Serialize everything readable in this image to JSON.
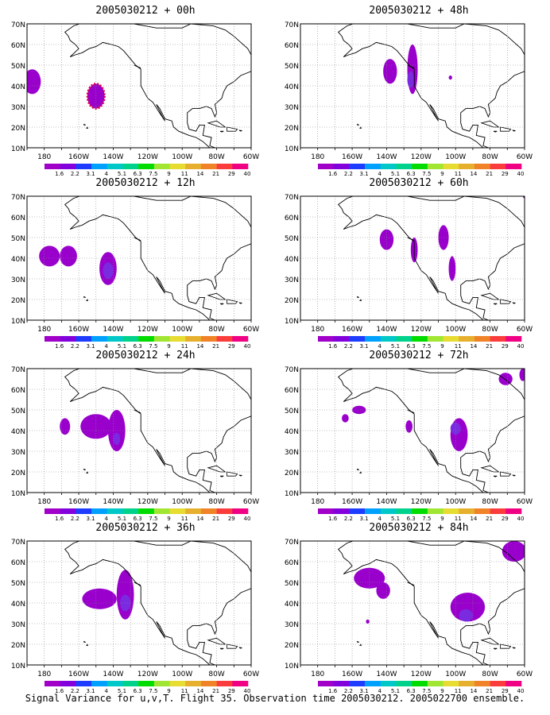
{
  "panels": [
    {
      "title": "2005030212 + 00h",
      "blobs": [
        {
          "lon": -187,
          "lat": 42,
          "rx": 5,
          "ry": 6,
          "level": 1
        },
        {
          "lon": -150,
          "lat": 35,
          "rx": 5,
          "ry": 6,
          "level": 1,
          "dotted": true
        }
      ]
    },
    {
      "title": "2005030212 + 12h",
      "blobs": [
        {
          "lon": -177,
          "lat": 41,
          "rx": 6,
          "ry": 5,
          "level": 1
        },
        {
          "lon": -166,
          "lat": 41,
          "rx": 5,
          "ry": 5,
          "level": 1
        },
        {
          "lon": -143,
          "lat": 35,
          "rx": 5,
          "ry": 8,
          "level": 1
        },
        {
          "lon": -143,
          "lat": 34,
          "rx": 3,
          "ry": 4,
          "level": 2
        }
      ]
    },
    {
      "title": "2005030212 + 24h",
      "blobs": [
        {
          "lon": -168,
          "lat": 42,
          "rx": 3,
          "ry": 4,
          "level": 1
        },
        {
          "lon": -150,
          "lat": 42,
          "rx": 9,
          "ry": 6,
          "level": 1
        },
        {
          "lon": -138,
          "lat": 40,
          "rx": 5,
          "ry": 10,
          "level": 1
        },
        {
          "lon": -138,
          "lat": 36,
          "rx": 2,
          "ry": 3,
          "level": 2
        }
      ]
    },
    {
      "title": "2005030212 + 36h",
      "blobs": [
        {
          "lon": -148,
          "lat": 42,
          "rx": 10,
          "ry": 5,
          "level": 1
        },
        {
          "lon": -133,
          "lat": 44,
          "rx": 5,
          "ry": 12,
          "level": 1
        },
        {
          "lon": -133,
          "lat": 40,
          "rx": 3,
          "ry": 4,
          "level": 2
        }
      ]
    },
    {
      "title": "2005030212 + 48h",
      "blobs": [
        {
          "lon": -138,
          "lat": 47,
          "rx": 4,
          "ry": 6,
          "level": 1
        },
        {
          "lon": -125,
          "lat": 48,
          "rx": 3,
          "ry": 12,
          "level": 1
        },
        {
          "lon": -126,
          "lat": 43,
          "rx": 2,
          "ry": 4,
          "level": 2
        },
        {
          "lon": -103,
          "lat": 44,
          "rx": 1,
          "ry": 1,
          "level": 1
        }
      ]
    },
    {
      "title": "2005030212 + 60h",
      "blobs": [
        {
          "lon": -140,
          "lat": 49,
          "rx": 4,
          "ry": 5,
          "level": 1
        },
        {
          "lon": -124,
          "lat": 44,
          "rx": 2,
          "ry": 6,
          "level": 1
        },
        {
          "lon": -107,
          "lat": 50,
          "rx": 3,
          "ry": 6,
          "level": 1
        },
        {
          "lon": -102,
          "lat": 35,
          "rx": 2,
          "ry": 6,
          "level": 1
        },
        {
          "lon": -60,
          "lat": 70,
          "rx": 1,
          "ry": 1,
          "level": 1
        }
      ]
    },
    {
      "title": "2005030212 + 72h",
      "blobs": [
        {
          "lon": -156,
          "lat": 50,
          "rx": 4,
          "ry": 2,
          "level": 1
        },
        {
          "lon": -164,
          "lat": 46,
          "rx": 2,
          "ry": 2,
          "level": 1
        },
        {
          "lon": -127,
          "lat": 42,
          "rx": 2,
          "ry": 3,
          "level": 1
        },
        {
          "lon": -98,
          "lat": 38,
          "rx": 5,
          "ry": 8,
          "level": 1
        },
        {
          "lon": -100,
          "lat": 41,
          "rx": 3,
          "ry": 3,
          "level": 2
        },
        {
          "lon": -71,
          "lat": 65,
          "rx": 4,
          "ry": 3,
          "level": 1
        },
        {
          "lon": -61,
          "lat": 67,
          "rx": 2,
          "ry": 3,
          "level": 1
        }
      ]
    },
    {
      "title": "2005030212 + 84h",
      "blobs": [
        {
          "lon": -150,
          "lat": 52,
          "rx": 9,
          "ry": 5,
          "level": 1
        },
        {
          "lon": -142,
          "lat": 46,
          "rx": 4,
          "ry": 4,
          "level": 1
        },
        {
          "lon": -93,
          "lat": 38,
          "rx": 10,
          "ry": 7,
          "level": 1
        },
        {
          "lon": -94,
          "lat": 34,
          "rx": 4,
          "ry": 3,
          "level": 2
        },
        {
          "lon": -66,
          "lat": 65,
          "rx": 7,
          "ry": 5,
          "level": 1
        },
        {
          "lon": -151,
          "lat": 31,
          "rx": 1,
          "ry": 1,
          "level": 1
        }
      ]
    }
  ],
  "lat_labels": [
    "70N",
    "60N",
    "50N",
    "40N",
    "30N",
    "20N",
    "10N"
  ],
  "lon_labels": [
    "180",
    "160W",
    "140W",
    "120W",
    "100W",
    "80W",
    "60W"
  ],
  "colorbar": {
    "colors": [
      "#a000c8",
      "#8200dc",
      "#1e3cff",
      "#00a0ff",
      "#00c8c8",
      "#00d28c",
      "#00dc00",
      "#a0e632",
      "#e6dc32",
      "#e6af2d",
      "#f08228",
      "#fa3c3c",
      "#f00082"
    ],
    "labels": [
      "1.6",
      "2.2",
      "3.1",
      "4",
      "5.1",
      "6.3",
      "7.5",
      "9",
      "11",
      "14",
      "21",
      "29",
      "40"
    ]
  },
  "level_colors": [
    "#9900cc",
    "#7a2be0",
    "#3a4cff"
  ],
  "footer": "Signal Variance for u,v,T. Flight 35. Observation time 2005030212. 2005022700 ensemble."
}
